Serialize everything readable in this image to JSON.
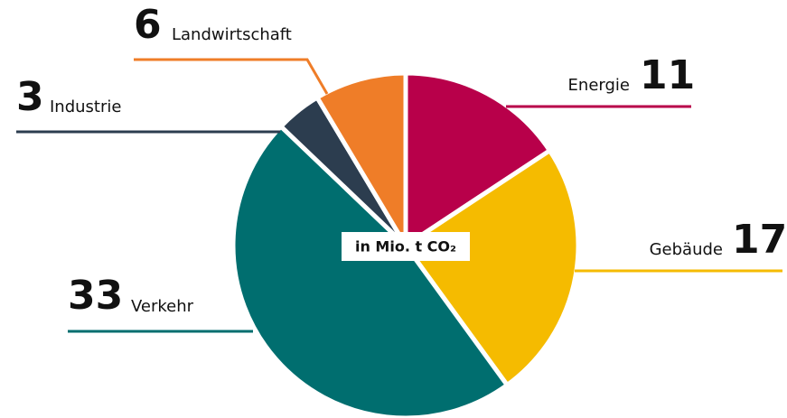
{
  "chart_data": {
    "type": "pie",
    "center_label": "in Mio. t CO₂",
    "categories": [
      "Energie",
      "Gebäude",
      "Verkehr",
      "Industrie",
      "Landwirtschaft"
    ],
    "values": [
      11,
      17,
      33,
      3,
      6
    ],
    "colors": [
      "#b8004a",
      "#f5bb00",
      "#006e6f",
      "#2c3d4f",
      "#ef7d28"
    ]
  }
}
